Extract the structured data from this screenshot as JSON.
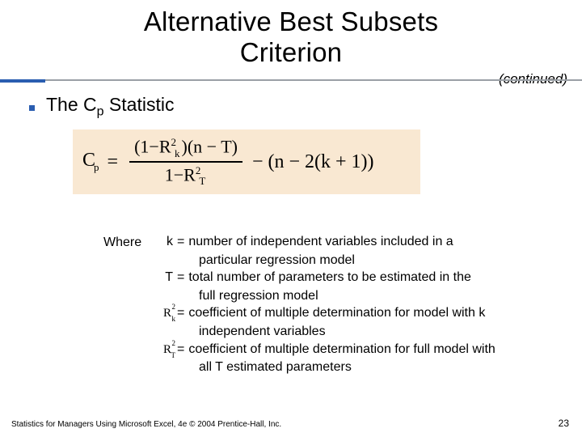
{
  "title_line1": "Alternative Best Subsets",
  "title_line2": "Criterion",
  "continued": "(continued)",
  "bullet": {
    "pre": "The C",
    "sub": "p",
    "post": " Statistic"
  },
  "formula": {
    "cp_pre": "C",
    "cp_sub": "p",
    "equals": "=",
    "num_a": "(1",
    "num_minus1": "−",
    "num_R": "R",
    "num_R_sup": "2",
    "num_R_sub": "k",
    "num_b": ")(n",
    "num_minus2": "−",
    "num_T": "T)",
    "den_a": "1",
    "den_minus": "−",
    "den_R": "R",
    "den_R_sup": "2",
    "den_R_sub": "T",
    "tail_minus": "−",
    "tail": "(n − 2(k + 1))"
  },
  "where_label": "Where",
  "defs": {
    "k_sym": "k",
    "k_txt": "number of independent variables included in a",
    "k_cont": "particular regression model",
    "T_sym": "T",
    "T_txt": "total number of parameters to be estimated in the",
    "T_cont": "full regression model",
    "Rk_txt": "coefficient of multiple determination for model with k",
    "Rk_cont": "independent variables",
    "RT_txt": "coefficient of multiple determination for full model with",
    "RT_cont": "all T estimated parameters"
  },
  "footer": "Statistics for Managers Using Microsoft Excel, 4e © 2004 Prentice-Hall, Inc.",
  "pagenum": "23",
  "colors": {
    "accent": "#2a5db0",
    "rule": "#9aa0a6",
    "formula_bg": "#f9e8d2"
  }
}
